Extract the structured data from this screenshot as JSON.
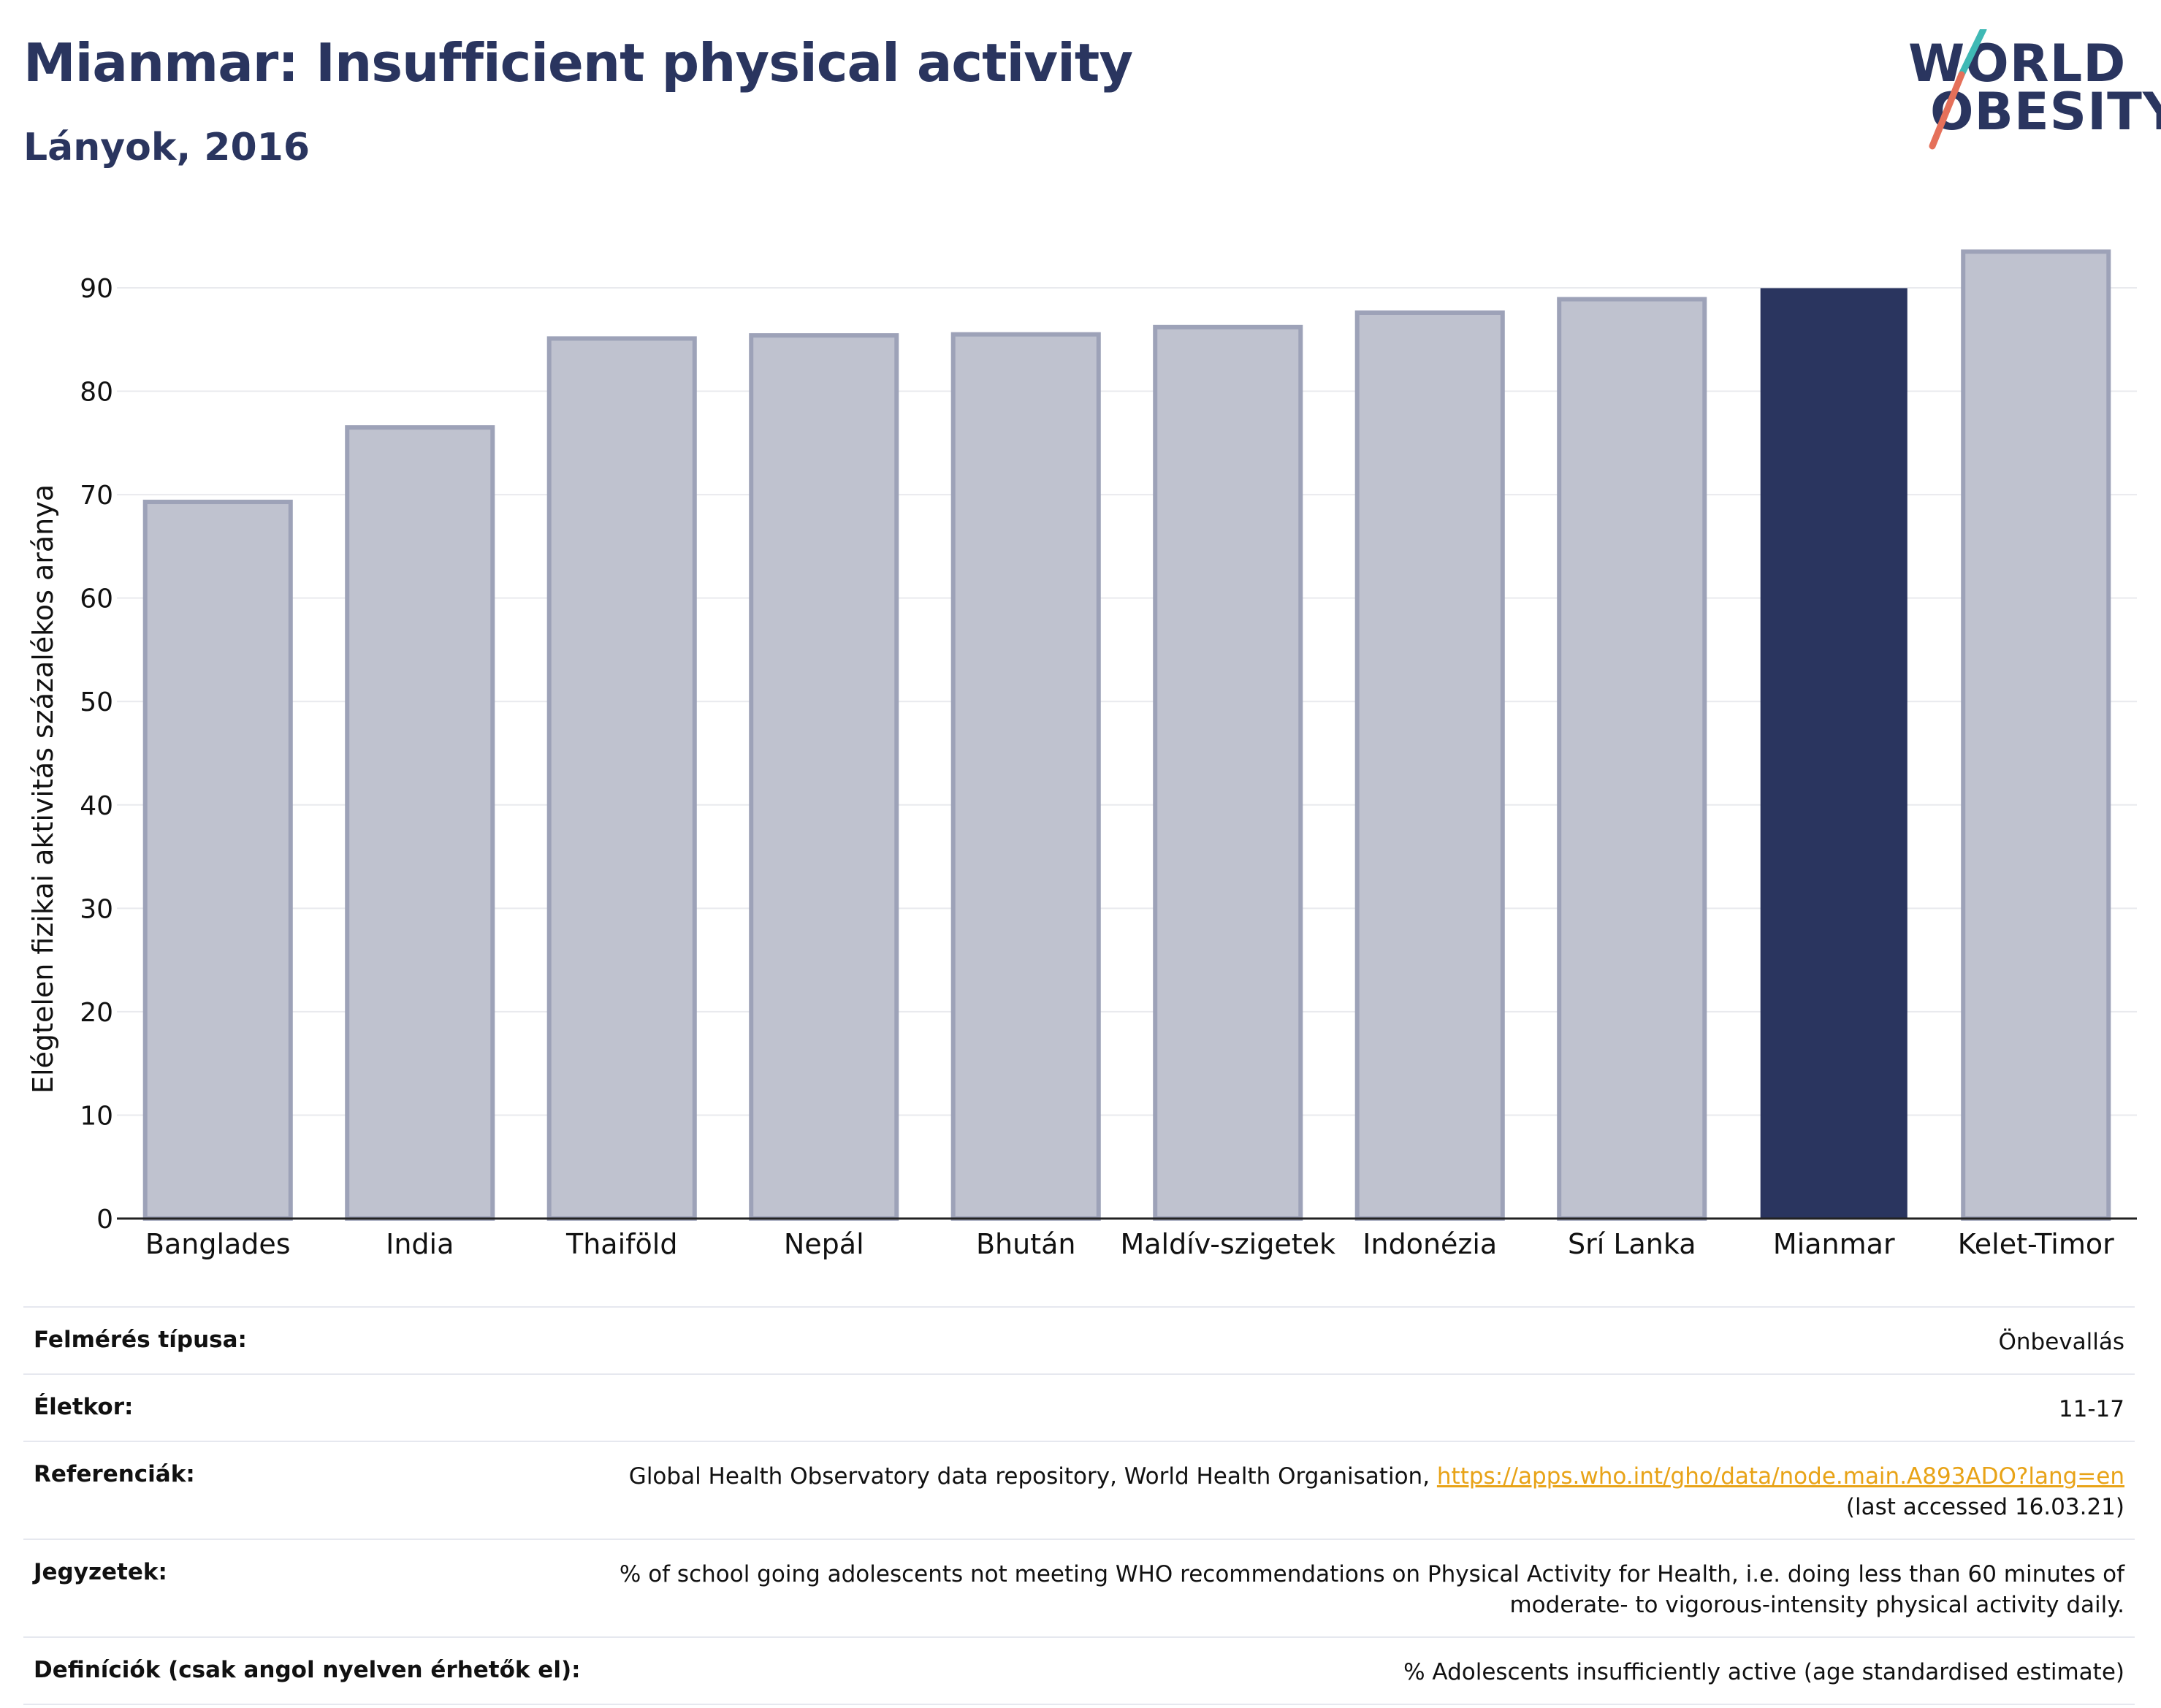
{
  "header": {
    "title": "Mianmar: Insufficient physical activity",
    "subtitle": "Lányok, 2016"
  },
  "logo": {
    "line1": "WORLD",
    "line2": "OBESITY"
  },
  "colors": {
    "primary": "#2a355f",
    "bar_muted": "#bfc2cf",
    "bar_muted_border": "#9da2b8",
    "logo_slash_teal": "#3fb9b5",
    "logo_slash_coral": "#e5705a",
    "link": "#e8a317"
  },
  "chart_data": {
    "type": "bar",
    "categories": [
      "Banglades",
      "India",
      "Thaiföld",
      "Nepál",
      "Bhután",
      "Maldív-szigetek",
      "Indonézia",
      "Srí Lanka",
      "Mianmar",
      "Kelet-Timor"
    ],
    "values": [
      69.3,
      76.5,
      85.1,
      85.4,
      85.5,
      86.2,
      87.6,
      88.9,
      89.9,
      93.5
    ],
    "highlight": "Mianmar",
    "title": "Mianmar: Insufficient physical activity",
    "subtitle": "Lányok, 2016",
    "xlabel": "",
    "ylabel": "Elégtelen fizikai aktivitás százalékos aránya",
    "ylim": [
      0,
      95
    ],
    "yticks": [
      0,
      10,
      20,
      30,
      40,
      50,
      60,
      70,
      80,
      90
    ],
    "grid": true
  },
  "info_table": [
    {
      "label": "Felmérés típusa:",
      "value": "Önbevallás"
    },
    {
      "label": "Életkor:",
      "value": "11-17"
    },
    {
      "label": "Referenciák:",
      "value_prefix": "Global Health Observatory data repository, World Health Organisation, ",
      "link": "https://apps.who.int/gho/data/node.main.A893ADO?lang=en",
      "value_suffix": "(last accessed 16.03.21)"
    },
    {
      "label": "Jegyzetek:",
      "value": "% of school going adolescents not meeting WHO recommendations on Physical Activity for Health, i.e. doing less than 60 minutes of moderate- to vigorous-intensity physical activity daily."
    },
    {
      "label": "Definíciók (csak angol nyelven érhetők el):",
      "value": "% Adolescents insufficiently active (age standardised estimate)"
    }
  ]
}
